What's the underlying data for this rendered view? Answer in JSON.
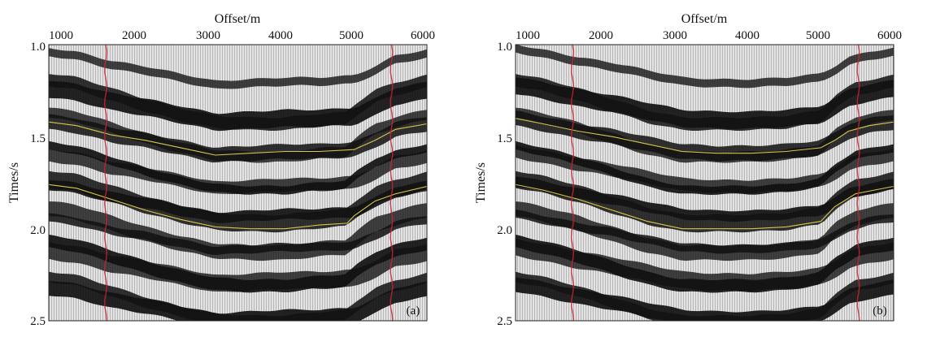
{
  "figure": {
    "panels": [
      {
        "id": "a",
        "label": "(a)",
        "xlabel": "Offset/m",
        "ylabel": "Times/s",
        "xticks": [
          "1000",
          "2000",
          "3000",
          "4000",
          "5000",
          "6000"
        ],
        "yticks": [
          "1.0",
          "1.5",
          "2.0",
          "2.5"
        ]
      },
      {
        "id": "b",
        "label": "(b)",
        "xlabel": "Offset/m",
        "ylabel": "Times/s",
        "xticks": [
          "1000",
          "2000",
          "3000",
          "4000",
          "5000",
          "6000"
        ],
        "yticks": [
          "1.0",
          "1.5",
          "2.0",
          "2.5"
        ]
      }
    ],
    "colors": {
      "reflection_black": "#111111",
      "trace_background": "#d9d9d9",
      "well_marker": "#cc2233",
      "horizon_pick": "#d8c64a"
    }
  },
  "chart_data": [
    {
      "type": "heatmap",
      "panel": "a",
      "xlim": [
        600,
        6050
      ],
      "ylim": [
        1.0,
        2.5
      ],
      "well_offsets": [
        1420,
        5540
      ],
      "horizon_1": {
        "x": [
          600,
          1000,
          1500,
          2000,
          2500,
          3000,
          3500,
          4000,
          4500,
          5000,
          5300,
          5600,
          6050
        ],
        "y": [
          1.42,
          1.44,
          1.49,
          1.52,
          1.56,
          1.6,
          1.59,
          1.58,
          1.58,
          1.57,
          1.52,
          1.46,
          1.43
        ]
      },
      "horizon_2": {
        "x": [
          600,
          1000,
          1500,
          2000,
          2500,
          3000,
          3500,
          4000,
          4500,
          4900,
          5000,
          5300,
          5600,
          6050
        ],
        "y": [
          1.76,
          1.78,
          1.84,
          1.9,
          1.95,
          1.99,
          2.0,
          2.0,
          1.98,
          1.97,
          1.93,
          1.85,
          1.81,
          1.77
        ]
      }
    },
    {
      "type": "heatmap",
      "panel": "b",
      "xlim": [
        600,
        6050
      ],
      "ylim": [
        1.0,
        2.5
      ],
      "well_offsets": [
        1420,
        5540
      ],
      "horizon_1": {
        "x": [
          600,
          1000,
          1500,
          2000,
          2500,
          3000,
          3500,
          4000,
          4500,
          5000,
          5200,
          5400,
          5700,
          6050
        ],
        "y": [
          1.4,
          1.43,
          1.47,
          1.5,
          1.54,
          1.58,
          1.59,
          1.59,
          1.58,
          1.56,
          1.52,
          1.47,
          1.44,
          1.42
        ]
      },
      "horizon_2": {
        "x": [
          600,
          1000,
          1500,
          2000,
          2500,
          3000,
          3500,
          4000,
          4500,
          5000,
          5200,
          5500,
          6050
        ],
        "y": [
          1.76,
          1.79,
          1.84,
          1.9,
          1.96,
          2.0,
          2.0,
          2.0,
          1.99,
          1.96,
          1.88,
          1.81,
          1.77
        ]
      }
    }
  ]
}
